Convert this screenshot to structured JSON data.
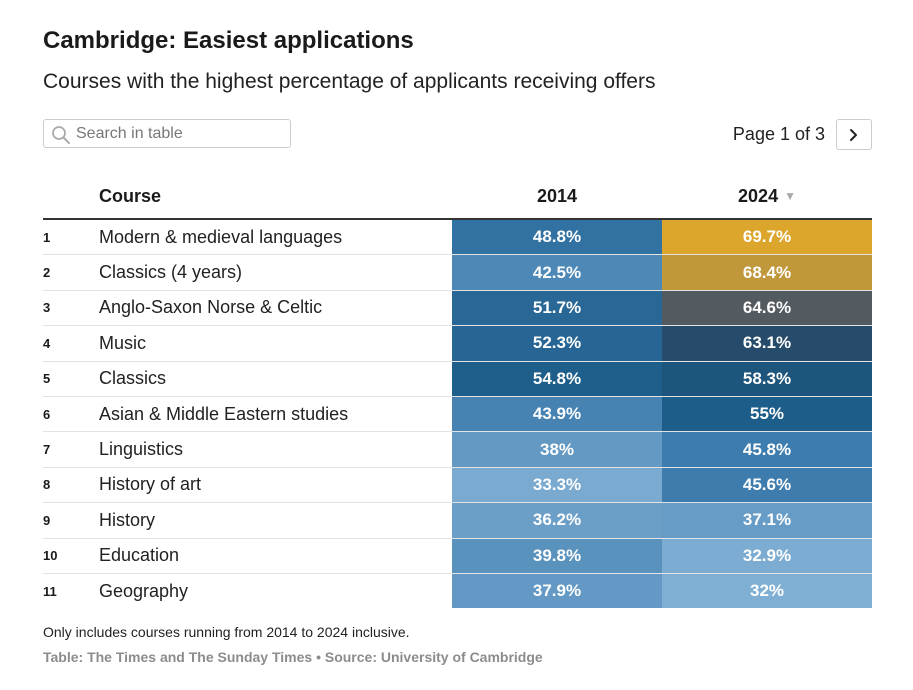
{
  "header": {
    "title": "Cambridge: Easiest applications",
    "subtitle": "Courses with the highest percentage of applicants receiving offers"
  },
  "search": {
    "placeholder": "Search in table",
    "value": ""
  },
  "pagination": {
    "label": "Page 1 of 3",
    "next_icon": "chevron-right-icon"
  },
  "columns": {
    "course": "Course",
    "y2014": "2014",
    "y2024": "2024",
    "sort_indicator": "▼"
  },
  "colors": {
    "low_blue": "#80afd4",
    "mid_blue": "#3c7bad",
    "deep_blue": "#1a5a85",
    "navy": "#244a6b",
    "grey": "#5a5d5f",
    "ochre": "#c1973c",
    "gold": "#e2a92a"
  },
  "chart_data": {
    "type": "table",
    "title": "Cambridge: Easiest applications",
    "subtitle": "Courses with the highest percentage of applicants receiving offers",
    "columns": [
      "Course",
      "2014",
      "2024"
    ],
    "rows": [
      {
        "rank": "1",
        "course": "Modern & medieval languages",
        "v2014": 48.8,
        "v2024": 69.7,
        "t2014": "48.8%",
        "t2024": "69.7%"
      },
      {
        "rank": "2",
        "course": "Classics (4 years)",
        "v2014": 42.5,
        "v2024": 68.4,
        "t2014": "42.5%",
        "t2024": "68.4%"
      },
      {
        "rank": "3",
        "course": "Anglo-Saxon Norse & Celtic",
        "v2014": 51.7,
        "v2024": 64.6,
        "t2014": "51.7%",
        "t2024": "64.6%"
      },
      {
        "rank": "4",
        "course": "Music",
        "v2014": 52.3,
        "v2024": 63.1,
        "t2014": "52.3%",
        "t2024": "63.1%"
      },
      {
        "rank": "5",
        "course": "Classics",
        "v2014": 54.8,
        "v2024": 58.3,
        "t2014": "54.8%",
        "t2024": "58.3%"
      },
      {
        "rank": "6",
        "course": "Asian & Middle Eastern studies",
        "v2014": 43.9,
        "v2024": 55,
        "t2014": "43.9%",
        "t2024": "55%"
      },
      {
        "rank": "7",
        "course": "Linguistics",
        "v2014": 38,
        "v2024": 45.8,
        "t2014": "38%",
        "t2024": "45.8%"
      },
      {
        "rank": "8",
        "course": "History of art",
        "v2014": 33.3,
        "v2024": 45.6,
        "t2014": "33.3%",
        "t2024": "45.6%"
      },
      {
        "rank": "9",
        "course": "History",
        "v2014": 36.2,
        "v2024": 37.1,
        "t2014": "36.2%",
        "t2024": "37.1%"
      },
      {
        "rank": "10",
        "course": "Education",
        "v2014": 39.8,
        "v2024": 32.9,
        "t2014": "39.8%",
        "t2024": "32.9%"
      },
      {
        "rank": "11",
        "course": "Geography",
        "v2014": 37.9,
        "v2024": 32,
        "t2014": "37.9%",
        "t2024": "32%"
      }
    ]
  },
  "footer": {
    "note": "Only includes courses running from 2014 to 2024 inclusive.",
    "source": "Table: The Times and The Sunday Times • Source: University of Cambridge"
  }
}
